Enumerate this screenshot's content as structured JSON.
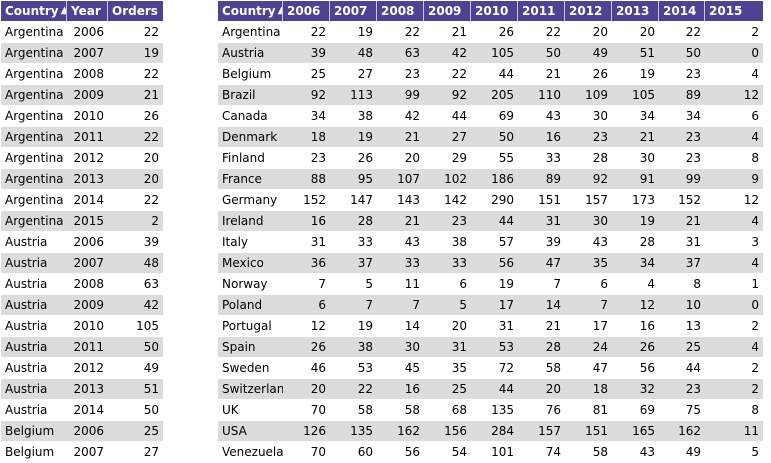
{
  "left_table": {
    "headers": {
      "country": "Country",
      "year": "Year",
      "orders": "Orders"
    },
    "sort_icon": "▲",
    "rows": [
      [
        "Argentina",
        "2006",
        "22"
      ],
      [
        "Argentina",
        "2007",
        "19"
      ],
      [
        "Argentina",
        "2008",
        "22"
      ],
      [
        "Argentina",
        "2009",
        "21"
      ],
      [
        "Argentina",
        "2010",
        "26"
      ],
      [
        "Argentina",
        "2011",
        "22"
      ],
      [
        "Argentina",
        "2012",
        "20"
      ],
      [
        "Argentina",
        "2013",
        "20"
      ],
      [
        "Argentina",
        "2014",
        "22"
      ],
      [
        "Argentina",
        "2015",
        "2"
      ],
      [
        "Austria",
        "2006",
        "39"
      ],
      [
        "Austria",
        "2007",
        "48"
      ],
      [
        "Austria",
        "2008",
        "63"
      ],
      [
        "Austria",
        "2009",
        "42"
      ],
      [
        "Austria",
        "2010",
        "105"
      ],
      [
        "Austria",
        "2011",
        "50"
      ],
      [
        "Austria",
        "2012",
        "49"
      ],
      [
        "Austria",
        "2013",
        "51"
      ],
      [
        "Austria",
        "2014",
        "50"
      ],
      [
        "Belgium",
        "2006",
        "25"
      ],
      [
        "Belgium",
        "2007",
        "27"
      ]
    ]
  },
  "right_table": {
    "country_header": "Country",
    "sort_icon": "▲",
    "years": [
      "2006",
      "2007",
      "2008",
      "2009",
      "2010",
      "2011",
      "2012",
      "2013",
      "2014",
      "2015"
    ],
    "rows": [
      {
        "country": "Argentina",
        "values": [
          "22",
          "19",
          "22",
          "21",
          "26",
          "22",
          "20",
          "20",
          "22",
          "2"
        ]
      },
      {
        "country": "Austria",
        "values": [
          "39",
          "48",
          "63",
          "42",
          "105",
          "50",
          "49",
          "51",
          "50",
          "0"
        ]
      },
      {
        "country": "Belgium",
        "values": [
          "25",
          "27",
          "23",
          "22",
          "44",
          "21",
          "26",
          "19",
          "23",
          "4"
        ]
      },
      {
        "country": "Brazil",
        "values": [
          "92",
          "113",
          "99",
          "92",
          "205",
          "110",
          "109",
          "105",
          "89",
          "12"
        ]
      },
      {
        "country": "Canada",
        "values": [
          "34",
          "38",
          "42",
          "44",
          "69",
          "43",
          "30",
          "34",
          "34",
          "6"
        ]
      },
      {
        "country": "Denmark",
        "values": [
          "18",
          "19",
          "21",
          "27",
          "50",
          "16",
          "23",
          "21",
          "23",
          "4"
        ]
      },
      {
        "country": "Finland",
        "values": [
          "23",
          "26",
          "20",
          "29",
          "55",
          "33",
          "28",
          "30",
          "23",
          "8"
        ]
      },
      {
        "country": "France",
        "values": [
          "88",
          "95",
          "107",
          "102",
          "186",
          "89",
          "92",
          "91",
          "99",
          "9"
        ]
      },
      {
        "country": "Germany",
        "values": [
          "152",
          "147",
          "143",
          "142",
          "290",
          "151",
          "157",
          "173",
          "152",
          "12"
        ]
      },
      {
        "country": "Ireland",
        "values": [
          "16",
          "28",
          "21",
          "23",
          "44",
          "31",
          "30",
          "19",
          "21",
          "4"
        ]
      },
      {
        "country": "Italy",
        "values": [
          "31",
          "33",
          "43",
          "38",
          "57",
          "39",
          "43",
          "28",
          "31",
          "3"
        ]
      },
      {
        "country": "Mexico",
        "values": [
          "36",
          "37",
          "33",
          "33",
          "56",
          "47",
          "35",
          "34",
          "37",
          "4"
        ]
      },
      {
        "country": "Norway",
        "values": [
          "7",
          "5",
          "11",
          "6",
          "19",
          "7",
          "6",
          "4",
          "8",
          "1"
        ]
      },
      {
        "country": "Poland",
        "values": [
          "6",
          "7",
          "7",
          "5",
          "17",
          "14",
          "7",
          "12",
          "10",
          "0"
        ]
      },
      {
        "country": "Portugal",
        "values": [
          "12",
          "19",
          "14",
          "20",
          "31",
          "21",
          "17",
          "16",
          "13",
          "2"
        ]
      },
      {
        "country": "Spain",
        "values": [
          "26",
          "38",
          "30",
          "31",
          "53",
          "28",
          "24",
          "26",
          "25",
          "4"
        ]
      },
      {
        "country": "Sweden",
        "values": [
          "46",
          "53",
          "45",
          "35",
          "72",
          "58",
          "47",
          "56",
          "44",
          "2"
        ]
      },
      {
        "country": "Switzerland",
        "values": [
          "20",
          "22",
          "16",
          "25",
          "44",
          "20",
          "18",
          "32",
          "23",
          "2"
        ]
      },
      {
        "country": "UK",
        "values": [
          "70",
          "58",
          "58",
          "68",
          "135",
          "76",
          "81",
          "69",
          "75",
          "8"
        ]
      },
      {
        "country": "USA",
        "values": [
          "126",
          "135",
          "162",
          "156",
          "284",
          "157",
          "151",
          "165",
          "162",
          "11"
        ]
      },
      {
        "country": "Venezuela",
        "values": [
          "70",
          "60",
          "56",
          "54",
          "101",
          "74",
          "58",
          "43",
          "49",
          "5"
        ]
      }
    ]
  }
}
